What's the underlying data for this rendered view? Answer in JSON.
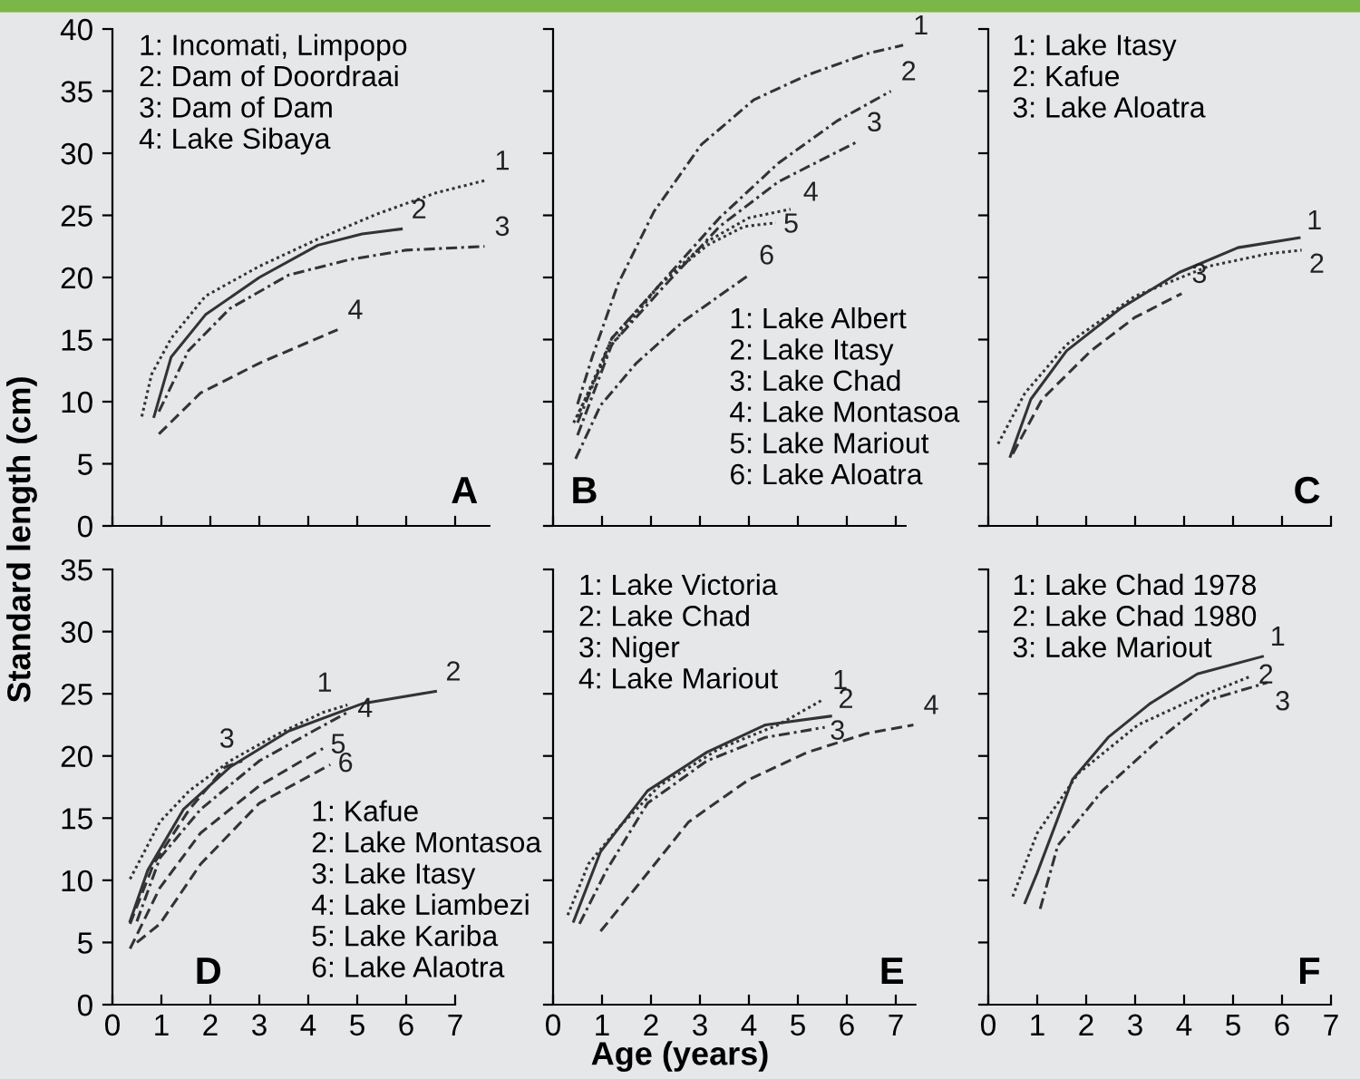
{
  "chart_data": [
    {
      "type": "line",
      "title": "A",
      "ylabel": "Standard length (cm)",
      "xlim": [
        0,
        7.7
      ],
      "ylim": [
        0,
        40
      ],
      "xticks": [
        0,
        1,
        2,
        3,
        4,
        5,
        6,
        7
      ],
      "yticks": [
        0,
        5,
        10,
        15,
        20,
        25,
        30,
        35,
        40
      ],
      "tick_labels": "y",
      "legend": false,
      "annotations": [
        "1: Incomati, Limpopo",
        "2: Dam of Doordraai",
        "3: Dam of Dam",
        "4: Lake Sibaya"
      ],
      "series": [
        {
          "name": "1",
          "color": "#333333",
          "line_style": "dotted",
          "x": [
            0.6,
            0.8,
            1.2,
            1.9,
            3.0,
            4.2,
            5.4,
            6.6,
            7.6
          ],
          "values": [
            8.8,
            12.2,
            15.1,
            18.5,
            20.9,
            23.1,
            25.1,
            26.8,
            27.8
          ]
        },
        {
          "name": "2",
          "color": "#333333",
          "line_style": "solid",
          "x": [
            0.85,
            1.2,
            1.9,
            3.0,
            4.2,
            5.1,
            5.9
          ],
          "values": [
            8.8,
            13.6,
            17.0,
            20.0,
            22.6,
            23.5,
            23.9
          ]
        },
        {
          "name": "3",
          "color": "#333333",
          "line_style": "dashdot",
          "x": [
            0.95,
            1.55,
            2.4,
            3.6,
            4.8,
            6.0,
            7.6
          ],
          "values": [
            9.2,
            14.1,
            17.5,
            20.2,
            21.4,
            22.2,
            22.5
          ]
        },
        {
          "name": "4",
          "color": "#333333",
          "line_style": "dashed",
          "x": [
            0.95,
            1.8,
            3.0,
            4.6
          ],
          "values": [
            7.4,
            10.7,
            13.1,
            15.8
          ]
        }
      ]
    },
    {
      "type": "line",
      "title": "B",
      "xlim": [
        0,
        7.2
      ],
      "ylim": [
        0,
        40
      ],
      "xticks": [
        0,
        1,
        2,
        3,
        4,
        5,
        6,
        7
      ],
      "yticks": [
        0,
        5,
        10,
        15,
        20,
        25,
        30,
        35,
        40
      ],
      "tick_labels": false,
      "legend": false,
      "annotations": [
        "1: Lake Albert",
        "2: Lake Itasy",
        "3: Lake Chad",
        "4: Lake Montasoa",
        "5: Lake Mariout",
        "6: Lake Aloatra"
      ],
      "series": [
        {
          "name": "1",
          "color": "#333333",
          "line_style": "dashdot",
          "x": [
            0.5,
            0.8,
            1.33,
            2.06,
            3.03,
            4.1,
            5.2,
            6.4,
            7.15
          ],
          "values": [
            9.8,
            13.6,
            19.5,
            25.3,
            30.7,
            34.3,
            36.3,
            38.0,
            38.7
          ]
        },
        {
          "name": "2",
          "color": "#333333",
          "line_style": "dashdot",
          "x": [
            0.5,
            1.2,
            2.2,
            3.4,
            4.6,
            5.8,
            6.9
          ],
          "values": [
            8.3,
            15.1,
            19.5,
            24.8,
            29.2,
            32.6,
            35.0
          ]
        },
        {
          "name": "3",
          "color": "#333333",
          "line_style": "dashdot",
          "x": [
            0.5,
            1.2,
            2.2,
            3.4,
            4.6,
            6.2
          ],
          "values": [
            7.3,
            14.6,
            19.0,
            24.1,
            27.7,
            30.9
          ]
        },
        {
          "name": "4",
          "color": "#333333",
          "line_style": "dotted",
          "x": [
            0.5,
            1.2,
            2.2,
            3.15,
            4.0,
            4.85
          ],
          "values": [
            8.8,
            15.1,
            19.5,
            22.9,
            24.8,
            25.5
          ]
        },
        {
          "name": "5",
          "color": "#333333",
          "line_style": "dotted",
          "x": [
            0.42,
            1.2,
            2.2,
            3.15,
            3.9,
            4.55
          ],
          "values": [
            8.3,
            14.6,
            19.5,
            22.6,
            24.1,
            24.4
          ]
        },
        {
          "name": "6",
          "color": "#333333",
          "line_style": "dashdot",
          "x": [
            0.46,
            0.97,
            1.7,
            2.67,
            4.0
          ],
          "values": [
            5.4,
            9.7,
            13.1,
            16.5,
            20.2
          ]
        }
      ]
    },
    {
      "type": "line",
      "title": "C",
      "xlim": [
        0,
        7
      ],
      "ylim": [
        0,
        40
      ],
      "xticks": [
        0,
        1,
        2,
        3,
        4,
        5,
        6,
        7
      ],
      "yticks": [
        0,
        5,
        10,
        15,
        20,
        25,
        30,
        35,
        40
      ],
      "tick_labels": false,
      "legend": false,
      "annotations": [
        "1: Lake Itasy",
        "2: Kafue",
        "3: Lake Aloatra"
      ],
      "series": [
        {
          "name": "1",
          "color": "#333333",
          "line_style": "solid",
          "x": [
            0.45,
            0.87,
            1.6,
            2.7,
            3.9,
            5.1,
            6.35
          ],
          "values": [
            5.6,
            10.2,
            14.1,
            17.5,
            20.4,
            22.4,
            23.2
          ]
        },
        {
          "name": "2",
          "color": "#333333",
          "line_style": "dotted",
          "x": [
            0.2,
            0.75,
            1.6,
            3.0,
            4.5,
            5.7,
            6.4
          ],
          "values": [
            6.6,
            10.7,
            14.6,
            18.5,
            20.9,
            21.9,
            22.2
          ]
        },
        {
          "name": "3",
          "color": "#333333",
          "line_style": "dashed",
          "x": [
            0.5,
            1.1,
            2.1,
            3.0,
            3.95
          ],
          "values": [
            5.8,
            10.2,
            14.1,
            16.8,
            18.7
          ]
        }
      ]
    },
    {
      "type": "line",
      "title": "D",
      "xlim": [
        0,
        7
      ],
      "ylim": [
        0,
        35
      ],
      "xticks": [
        0,
        1,
        2,
        3,
        4,
        5,
        6,
        7
      ],
      "yticks": [
        0,
        5,
        10,
        15,
        20,
        25,
        30,
        35
      ],
      "legend": false,
      "annotations": [
        "1: Kafue",
        "2: Lake Montasoa",
        "3: Lake Itasy",
        "4: Lake Liambezi",
        "5: Lake Kariba",
        "6: Lake Alaotra"
      ],
      "series": [
        {
          "name": "1",
          "color": "#333333",
          "line_style": "dotted",
          "x": [
            0.36,
            0.97,
            1.57,
            2.4,
            3.4,
            4.3,
            4.8
          ],
          "values": [
            10.1,
            14.7,
            17.2,
            19.6,
            21.8,
            23.5,
            24.1
          ]
        },
        {
          "name": "2",
          "color": "#333333",
          "line_style": "solid",
          "x": [
            0.36,
            0.72,
            1.45,
            2.4,
            3.6,
            5.1,
            6.6
          ],
          "values": [
            6.7,
            10.8,
            15.7,
            19.1,
            22.0,
            24.2,
            25.2
          ]
        },
        {
          "name": "3",
          "color": "#333333",
          "line_style": "dashed",
          "x": [
            0.36,
            0.84,
            1.57,
            2.3,
            2.65
          ],
          "values": [
            6.5,
            11.3,
            15.7,
            19.1,
            19.6
          ]
        },
        {
          "name": "4",
          "color": "#333333",
          "line_style": "dashdot",
          "x": [
            0.5,
            0.97,
            1.8,
            3.0,
            4.1,
            4.8
          ],
          "values": [
            6.7,
            11.8,
            15.7,
            19.6,
            22.0,
            23.5
          ]
        },
        {
          "name": "5",
          "color": "#333333",
          "line_style": "dashed",
          "x": [
            0.36,
            0.97,
            1.8,
            3.0,
            4.3
          ],
          "values": [
            4.5,
            9.4,
            13.8,
            17.6,
            20.6
          ]
        },
        {
          "name": "6",
          "color": "#333333",
          "line_style": "dashed",
          "x": [
            0.5,
            0.97,
            1.8,
            3.0,
            4.45
          ],
          "values": [
            5.0,
            6.5,
            11.3,
            16.2,
            19.3
          ]
        }
      ]
    },
    {
      "type": "line",
      "title": "E",
      "xlabel": "Age (years)",
      "xlim": [
        0,
        7.4
      ],
      "ylim": [
        0,
        35
      ],
      "xticks": [
        0,
        1,
        2,
        3,
        4,
        5,
        6,
        7
      ],
      "yticks": [
        0,
        5,
        10,
        15,
        20,
        25,
        30,
        35
      ],
      "tick_labels": "x",
      "legend": false,
      "annotations": [
        "1: Lake Victoria",
        "2: Lake Chad",
        "3: Niger",
        "4: Lake Mariout"
      ],
      "series": [
        {
          "name": "1",
          "color": "#333333",
          "line_style": "dotted",
          "x": [
            0.3,
            0.72,
            1.33,
            2.17,
            3.4,
            4.6,
            5.5
          ],
          "values": [
            7.2,
            11.3,
            14.2,
            17.6,
            20.6,
            22.5,
            24.5
          ]
        },
        {
          "name": "2",
          "color": "#333333",
          "line_style": "solid",
          "x": [
            0.42,
            0.97,
            1.93,
            3.14,
            4.34,
            5.67
          ],
          "values": [
            6.7,
            12.3,
            17.2,
            20.3,
            22.5,
            23.2
          ]
        },
        {
          "name": "3",
          "color": "#333333",
          "line_style": "dashdot",
          "x": [
            0.54,
            1.09,
            1.93,
            3.14,
            4.34,
            5.55
          ],
          "values": [
            6.5,
            10.8,
            16.2,
            19.6,
            21.5,
            22.3
          ]
        },
        {
          "name": "4",
          "color": "#333333",
          "line_style": "dashed",
          "x": [
            0.97,
            1.69,
            2.77,
            4.0,
            5.2,
            6.4,
            7.36
          ],
          "values": [
            5.9,
            9.4,
            14.7,
            18.1,
            20.3,
            21.8,
            22.5
          ]
        }
      ]
    },
    {
      "type": "line",
      "title": "F",
      "xlim": [
        0,
        7
      ],
      "ylim": [
        0,
        35
      ],
      "xticks": [
        0,
        1,
        2,
        3,
        4,
        5,
        6,
        7
      ],
      "yticks": [
        0,
        5,
        10,
        15,
        20,
        25,
        30,
        35
      ],
      "tick_labels": "x",
      "legend": false,
      "annotations": [
        "1: Lake Chad 1978",
        "2: Lake Chad 1980",
        "3: Lake Mariout"
      ],
      "series": [
        {
          "name": "1",
          "color": "#333333",
          "line_style": "solid",
          "x": [
            0.75,
            1.0,
            1.72,
            2.45,
            3.3,
            4.27,
            5.6
          ],
          "values": [
            8.2,
            10.6,
            18.1,
            21.5,
            24.2,
            26.6,
            28.0
          ]
        },
        {
          "name": "2",
          "color": "#333333",
          "line_style": "dotted",
          "x": [
            0.5,
            1.0,
            1.84,
            3.06,
            4.27,
            5.36
          ],
          "values": [
            8.7,
            13.8,
            18.6,
            22.5,
            24.7,
            26.4
          ]
        },
        {
          "name": "3",
          "color": "#333333",
          "line_style": "dashdot",
          "x": [
            1.06,
            1.42,
            2.33,
            3.54,
            4.5,
            5.7
          ],
          "values": [
            7.7,
            12.8,
            17.2,
            21.5,
            24.5,
            25.9
          ]
        }
      ]
    }
  ]
}
